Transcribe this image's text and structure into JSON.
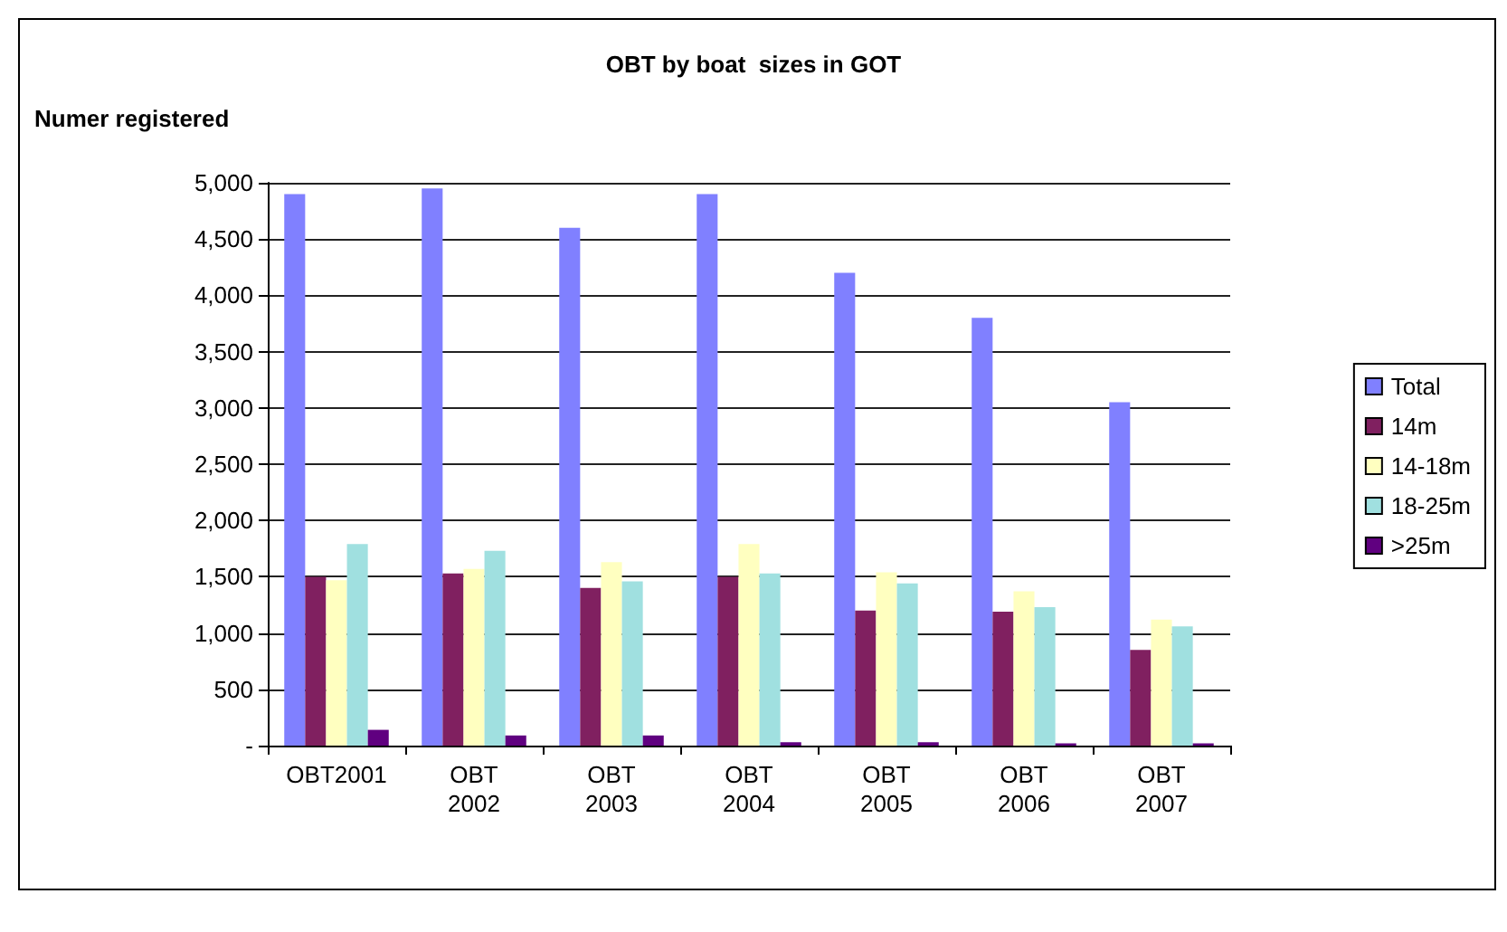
{
  "chart_data": {
    "type": "bar",
    "title": "OBT by boat  sizes in GOT",
    "ylabel": "Numer registered",
    "categories": [
      "OBT2001",
      "OBT 2002",
      "OBT 2003",
      "OBT 2004",
      "OBT 2005",
      "OBT 2006",
      "OBT 2007"
    ],
    "series": [
      {
        "name": "Total",
        "color": "#8080ff",
        "values": [
          4900,
          4950,
          4600,
          4900,
          4200,
          3800,
          3050
        ]
      },
      {
        "name": "14m",
        "color": "#802060",
        "values": [
          1500,
          1530,
          1400,
          1500,
          1200,
          1190,
          850
        ]
      },
      {
        "name": "14-18m",
        "color": "#ffffc0",
        "values": [
          1470,
          1570,
          1630,
          1790,
          1540,
          1370,
          1120
        ]
      },
      {
        "name": "18-25m",
        "color": "#a0e0e0",
        "values": [
          1790,
          1730,
          1460,
          1530,
          1440,
          1230,
          1060
        ]
      },
      {
        "name": ">25m",
        "color": "#600080",
        "values": [
          140,
          90,
          90,
          30,
          30,
          20,
          20
        ]
      }
    ],
    "ylim": [
      0,
      5000
    ],
    "yticks": [
      {
        "value": 0,
        "label": "-"
      },
      500,
      {
        "value": 1000,
        "label": "1,000"
      },
      {
        "value": 1500,
        "label": "1,500"
      },
      {
        "value": 2000,
        "label": "2,000"
      },
      {
        "value": 2500,
        "label": "2,500"
      },
      {
        "value": 3000,
        "label": "3,000"
      },
      {
        "value": 3500,
        "label": "3,500"
      },
      {
        "value": 4000,
        "label": "4,000"
      },
      {
        "value": 4500,
        "label": "4,500"
      },
      {
        "value": 5000,
        "label": "5,000"
      }
    ],
    "grid": "y",
    "legend": "right"
  }
}
